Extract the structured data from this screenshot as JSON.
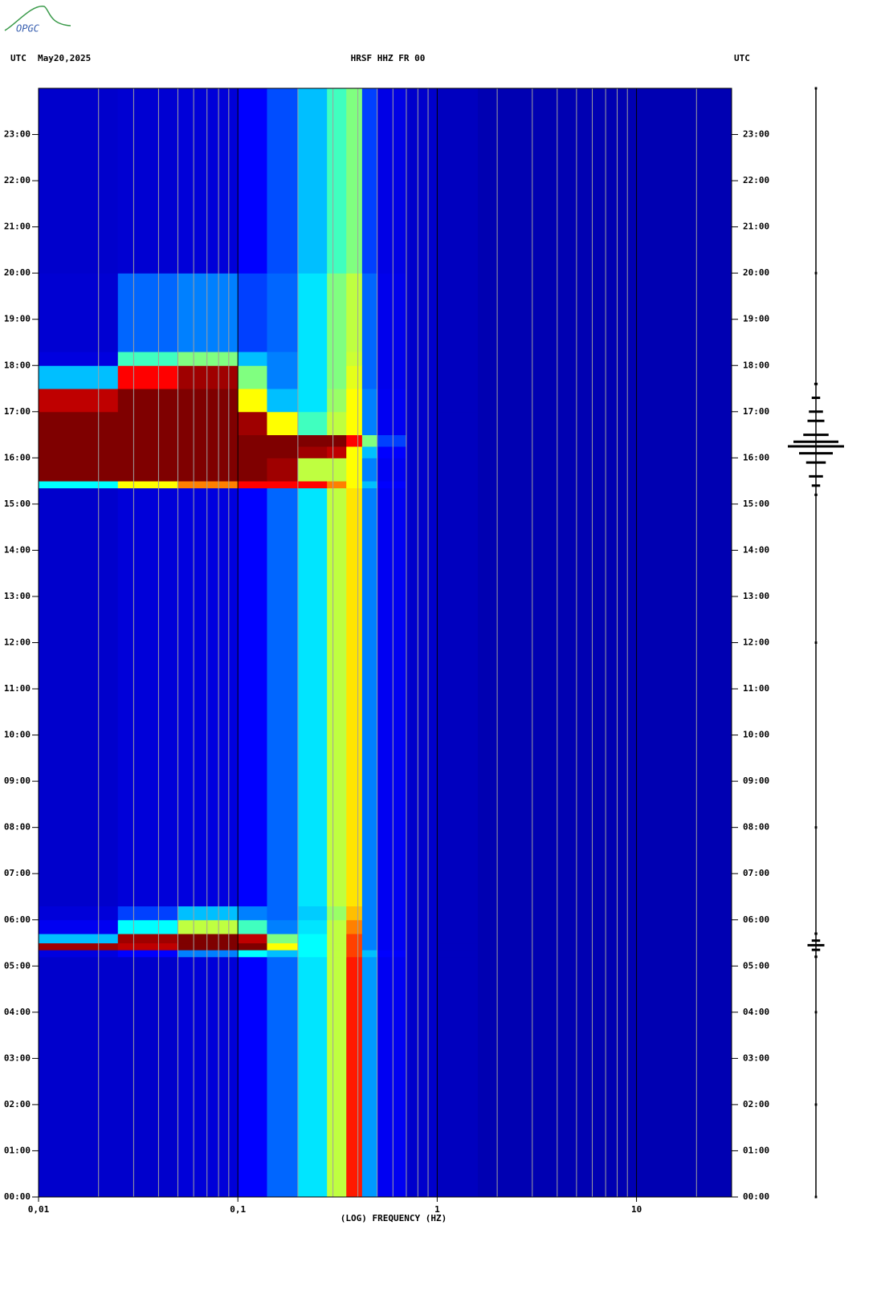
{
  "logo": "OPGC",
  "chart_data": {
    "type": "spectrogram",
    "header_left": "UTC",
    "date": "May20,2025",
    "title": "HRSF HHZ FR 00",
    "header_right": "UTC",
    "xlabel": "(LOG) FREQUENCY (HZ)",
    "xscale": "log",
    "xlim": [
      0.01,
      30
    ],
    "xticks": [
      {
        "value": 0.01,
        "label": "0,01"
      },
      {
        "value": 0.1,
        "label": "0,1"
      },
      1,
      10
    ],
    "xgrid_minor": [
      0.02,
      0.03,
      0.04,
      0.05,
      0.06,
      0.07,
      0.08,
      0.09,
      0.2,
      0.3,
      0.4,
      0.5,
      0.6,
      0.7,
      0.8,
      0.9,
      2,
      3,
      4,
      5,
      6,
      7,
      8,
      9,
      20
    ],
    "ylim": [
      0,
      24
    ],
    "yticks": [
      {
        "value": 0,
        "label": "00:00"
      },
      {
        "value": 1,
        "label": "01:00"
      },
      {
        "value": 2,
        "label": "02:00"
      },
      {
        "value": 3,
        "label": "03:00"
      },
      {
        "value": 4,
        "label": "04:00"
      },
      {
        "value": 5,
        "label": "05:00"
      },
      {
        "value": 6,
        "label": "06:00"
      },
      {
        "value": 7,
        "label": "07:00"
      },
      {
        "value": 8,
        "label": "08:00"
      },
      {
        "value": 9,
        "label": "09:00"
      },
      {
        "value": 10,
        "label": "10:00"
      },
      {
        "value": 11,
        "label": "11:00"
      },
      {
        "value": 12,
        "label": "12:00"
      },
      {
        "value": 13,
        "label": "13:00"
      },
      {
        "value": 14,
        "label": "14:00"
      },
      {
        "value": 15,
        "label": "15:00"
      },
      {
        "value": 16,
        "label": "16:00"
      },
      {
        "value": 17,
        "label": "17:00"
      },
      {
        "value": 18,
        "label": "18:00"
      },
      {
        "value": 19,
        "label": "19:00"
      },
      {
        "value": 20,
        "label": "20:00"
      },
      {
        "value": 21,
        "label": "21:00"
      },
      {
        "value": 22,
        "label": "22:00"
      },
      {
        "value": 23,
        "label": "23:00"
      }
    ],
    "colormap": [
      "#00007f",
      "#0000ff",
      "#00ffff",
      "#ffff00",
      "#ff0000",
      "#7f0000"
    ],
    "freq_edges": [
      0.01,
      0.025,
      0.05,
      0.1,
      0.14,
      0.2,
      0.28,
      0.35,
      0.42,
      0.5,
      0.7,
      1,
      1.6,
      30
    ],
    "time_edges": [
      0,
      5.2,
      5.35,
      5.5,
      5.7,
      6.0,
      6.3,
      15.35,
      15.5,
      16.0,
      16.25,
      16.5,
      17.0,
      17.5,
      18.0,
      18.3,
      20.0,
      24
    ],
    "z": [
      [
        0.12,
        0.12,
        0.14,
        0.2,
        0.28,
        0.38,
        0.55,
        0.78,
        0.32,
        0.18,
        0.12,
        0.1,
        0.08
      ],
      [
        0.15,
        0.2,
        0.3,
        0.4,
        0.35,
        0.4,
        0.55,
        0.75,
        0.35,
        0.2,
        0.12,
        0.1,
        0.08
      ],
      [
        0.95,
        0.9,
        1,
        1,
        0.6,
        0.4,
        0.55,
        0.75,
        0.3,
        0.18,
        0.12,
        0.1,
        0.08
      ],
      [
        0.35,
        0.95,
        1,
        0.9,
        0.5,
        0.4,
        0.55,
        0.75,
        0.3,
        0.18,
        0.12,
        0.1,
        0.08
      ],
      [
        0.18,
        0.4,
        0.55,
        0.45,
        0.3,
        0.38,
        0.55,
        0.7,
        0.3,
        0.18,
        0.12,
        0.1,
        0.08
      ],
      [
        0.14,
        0.25,
        0.35,
        0.3,
        0.28,
        0.36,
        0.52,
        0.65,
        0.3,
        0.18,
        0.12,
        0.1,
        0.08
      ],
      [
        0.12,
        0.14,
        0.15,
        0.2,
        0.28,
        0.38,
        0.55,
        0.62,
        0.3,
        0.18,
        0.12,
        0.1,
        0.08
      ],
      [
        0.4,
        0.6,
        0.7,
        0.8,
        0.8,
        0.8,
        0.7,
        0.6,
        0.35,
        0.2,
        0.12,
        0.1,
        0.08
      ],
      [
        1,
        1,
        1,
        1,
        0.95,
        0.55,
        0.55,
        0.6,
        0.3,
        0.18,
        0.12,
        0.1,
        0.08
      ],
      [
        1,
        1,
        1,
        1,
        1,
        0.95,
        0.9,
        0.6,
        0.35,
        0.2,
        0.12,
        0.1,
        0.08
      ],
      [
        1,
        1,
        1,
        1,
        1,
        1,
        1,
        0.8,
        0.5,
        0.25,
        0.12,
        0.1,
        0.08
      ],
      [
        1,
        1,
        1,
        0.95,
        0.6,
        0.45,
        0.55,
        0.6,
        0.3,
        0.18,
        0.12,
        0.1,
        0.08
      ],
      [
        0.9,
        1,
        1,
        0.6,
        0.35,
        0.38,
        0.52,
        0.6,
        0.3,
        0.18,
        0.12,
        0.1,
        0.08
      ],
      [
        0.35,
        0.8,
        0.95,
        0.5,
        0.3,
        0.38,
        0.5,
        0.58,
        0.28,
        0.17,
        0.12,
        0.1,
        0.08
      ],
      [
        0.15,
        0.45,
        0.5,
        0.35,
        0.3,
        0.38,
        0.5,
        0.56,
        0.28,
        0.17,
        0.12,
        0.1,
        0.08
      ],
      [
        0.13,
        0.28,
        0.3,
        0.25,
        0.28,
        0.38,
        0.5,
        0.55,
        0.28,
        0.17,
        0.12,
        0.1,
        0.08
      ],
      [
        0.12,
        0.13,
        0.14,
        0.2,
        0.26,
        0.35,
        0.45,
        0.5,
        0.25,
        0.16,
        0.12,
        0.1,
        0.08
      ]
    ],
    "trace": {
      "times": [
        0,
        2,
        4,
        5.2,
        5.35,
        5.45,
        5.55,
        5.7,
        8,
        12,
        15.2,
        15.4,
        15.6,
        15.9,
        16.1,
        16.25,
        16.35,
        16.5,
        16.8,
        17,
        17.3,
        17.6,
        20,
        24
      ],
      "amplitude": [
        0.04,
        0.04,
        0.04,
        0.05,
        0.15,
        0.3,
        0.15,
        0.05,
        0.04,
        0.04,
        0.05,
        0.15,
        0.25,
        0.35,
        0.6,
        1,
        0.8,
        0.45,
        0.3,
        0.25,
        0.15,
        0.06,
        0.04,
        0.04
      ]
    }
  }
}
